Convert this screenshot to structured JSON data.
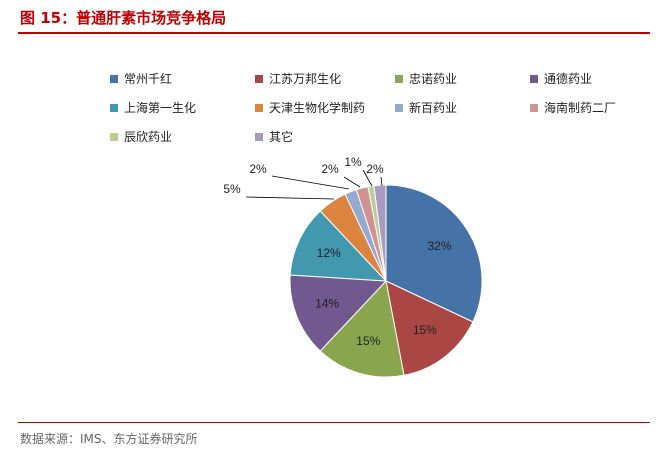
{
  "title": "图 15：普通肝素市场竞争格局",
  "source": "数据来源：IMS、东方证券研究所",
  "colors": {
    "accent": "#c00000"
  },
  "chart_data": {
    "type": "pie",
    "categories": [
      "常州千红",
      "江苏万邦生化",
      "忠诺药业",
      "通德药业",
      "上海第一生化",
      "天津生物化学制药",
      "新百药业",
      "海南制药二厂",
      "辰欣药业",
      "其它"
    ],
    "values": [
      32,
      15,
      15,
      14,
      12,
      5,
      2,
      2,
      1,
      2
    ],
    "labels": [
      "32%",
      "15%",
      "15%",
      "14%",
      "12%",
      "5%",
      "2%",
      "2%",
      "1%",
      "2%"
    ],
    "colors": [
      "#4572a7",
      "#aa4643",
      "#89a54e",
      "#71588f",
      "#4198af",
      "#db843d",
      "#93a9cf",
      "#d19392",
      "#b9cd96",
      "#a99bbd"
    ],
    "start": "12 o'clock",
    "direction": "clockwise",
    "legend_position": "top"
  }
}
